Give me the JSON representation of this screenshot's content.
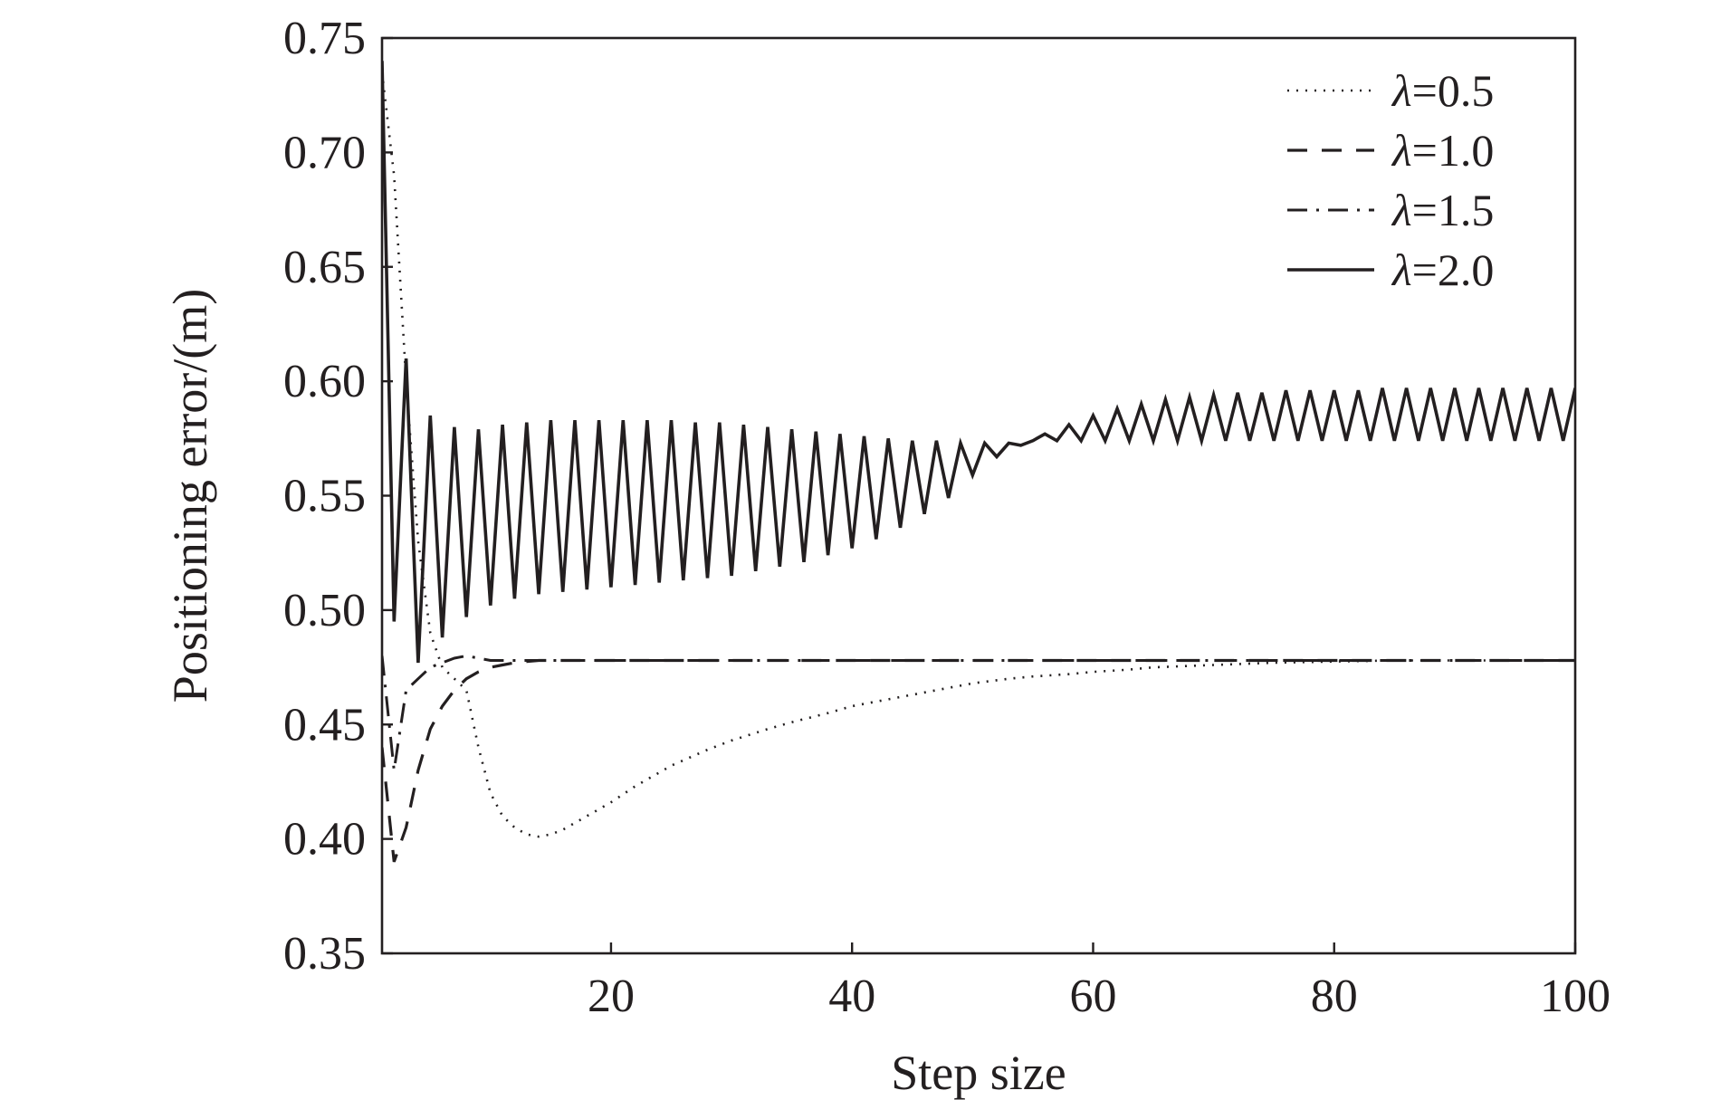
{
  "chart_data": {
    "type": "line",
    "title": "",
    "xlabel": "Step size",
    "ylabel": "Positioning error/(m)",
    "xlim": [
      1,
      100
    ],
    "ylim": [
      0.35,
      0.75
    ],
    "xticks": [
      20,
      40,
      60,
      80,
      100
    ],
    "xtick_labels": [
      "20",
      "40",
      "60",
      "80",
      "100"
    ],
    "yticks": [
      0.35,
      0.4,
      0.45,
      0.5,
      0.55,
      0.6,
      0.65,
      0.7,
      0.75
    ],
    "ytick_labels": [
      "0.35",
      "0.40",
      "0.45",
      "0.50",
      "0.55",
      "0.60",
      "0.65",
      "0.70",
      "0.75"
    ],
    "grid": false,
    "legend_position": "top-right",
    "colors": {
      "line": "#231f20",
      "axis": "#231f20",
      "background": "#ffffff"
    },
    "series": [
      {
        "name": "λ=0.5",
        "symbol": "λ",
        "value_text": "=0.5",
        "style": "dotted",
        "x": [
          1,
          2,
          3,
          4,
          5,
          6,
          7,
          8,
          9,
          10,
          11,
          12,
          13,
          14,
          15,
          16,
          18,
          20,
          22,
          25,
          28,
          30,
          33,
          35,
          38,
          40,
          43,
          45,
          48,
          50,
          53,
          55,
          58,
          60,
          63,
          65,
          70,
          75,
          80,
          85,
          90,
          95,
          100
        ],
        "y": [
          0.735,
          0.69,
          0.6,
          0.53,
          0.49,
          0.475,
          0.47,
          0.465,
          0.44,
          0.42,
          0.41,
          0.405,
          0.402,
          0.401,
          0.402,
          0.404,
          0.41,
          0.416,
          0.423,
          0.432,
          0.439,
          0.443,
          0.448,
          0.451,
          0.455,
          0.458,
          0.461,
          0.463,
          0.466,
          0.468,
          0.47,
          0.471,
          0.472,
          0.473,
          0.474,
          0.475,
          0.476,
          0.477,
          0.4775,
          0.478,
          0.478,
          0.478,
          0.478
        ]
      },
      {
        "name": "λ=1.0",
        "symbol": "λ",
        "value_text": "=1.0",
        "style": "dashed",
        "x": [
          1,
          2,
          3,
          4,
          5,
          6,
          7,
          8,
          9,
          10,
          11,
          12,
          13,
          14,
          15,
          20,
          30,
          40,
          50,
          60,
          70,
          80,
          90,
          100
        ],
        "y": [
          0.44,
          0.39,
          0.405,
          0.43,
          0.448,
          0.458,
          0.465,
          0.47,
          0.473,
          0.475,
          0.476,
          0.477,
          0.4775,
          0.478,
          0.478,
          0.478,
          0.478,
          0.478,
          0.478,
          0.478,
          0.478,
          0.478,
          0.478,
          0.478
        ]
      },
      {
        "name": "λ=1.5",
        "symbol": "λ",
        "value_text": "=1.5",
        "style": "dashdot",
        "x": [
          1,
          2,
          3,
          4,
          5,
          6,
          7,
          8,
          9,
          10,
          11,
          12,
          13,
          14,
          15,
          20,
          30,
          40,
          50,
          60,
          70,
          80,
          90,
          100
        ],
        "y": [
          0.48,
          0.43,
          0.465,
          0.47,
          0.475,
          0.477,
          0.479,
          0.48,
          0.479,
          0.478,
          0.478,
          0.478,
          0.478,
          0.478,
          0.478,
          0.478,
          0.478,
          0.478,
          0.478,
          0.478,
          0.478,
          0.478,
          0.478,
          0.478
        ]
      },
      {
        "name": "λ=2.0",
        "symbol": "λ",
        "value_text": "=2.0",
        "style": "solid",
        "x": [
          1,
          2,
          3,
          4,
          5,
          6,
          7,
          8,
          9,
          10,
          11,
          12,
          13,
          14,
          15,
          16,
          17,
          18,
          19,
          20,
          21,
          22,
          23,
          24,
          25,
          26,
          27,
          28,
          29,
          30,
          31,
          32,
          33,
          34,
          35,
          36,
          37,
          38,
          39,
          40,
          41,
          42,
          43,
          44,
          45,
          46,
          47,
          48,
          49,
          50,
          51,
          52,
          53,
          54,
          55,
          56,
          57,
          58,
          59,
          60,
          61,
          62,
          63,
          64,
          65,
          66,
          67,
          68,
          69,
          70,
          71,
          72,
          73,
          74,
          75,
          76,
          77,
          78,
          79,
          80,
          81,
          82,
          83,
          84,
          85,
          86,
          87,
          88,
          89,
          90,
          91,
          92,
          93,
          94,
          95,
          96,
          97,
          98,
          99,
          100
        ],
        "y": [
          0.74,
          0.495,
          0.61,
          0.477,
          0.585,
          0.488,
          0.58,
          0.497,
          0.579,
          0.502,
          0.581,
          0.505,
          0.582,
          0.507,
          0.583,
          0.508,
          0.583,
          0.509,
          0.583,
          0.51,
          0.583,
          0.511,
          0.583,
          0.512,
          0.583,
          0.513,
          0.582,
          0.514,
          0.582,
          0.515,
          0.581,
          0.517,
          0.58,
          0.519,
          0.579,
          0.521,
          0.578,
          0.524,
          0.577,
          0.527,
          0.576,
          0.531,
          0.575,
          0.536,
          0.574,
          0.542,
          0.574,
          0.549,
          0.573,
          0.559,
          0.573,
          0.567,
          0.573,
          0.572,
          0.574,
          0.577,
          0.574,
          0.581,
          0.574,
          0.585,
          0.574,
          0.588,
          0.574,
          0.59,
          0.574,
          0.592,
          0.574,
          0.593,
          0.574,
          0.594,
          0.574,
          0.595,
          0.574,
          0.595,
          0.574,
          0.596,
          0.574,
          0.596,
          0.574,
          0.596,
          0.574,
          0.596,
          0.574,
          0.597,
          0.574,
          0.597,
          0.574,
          0.597,
          0.574,
          0.597,
          0.574,
          0.597,
          0.574,
          0.597,
          0.574,
          0.597,
          0.574,
          0.597,
          0.574,
          0.597
        ]
      }
    ]
  }
}
